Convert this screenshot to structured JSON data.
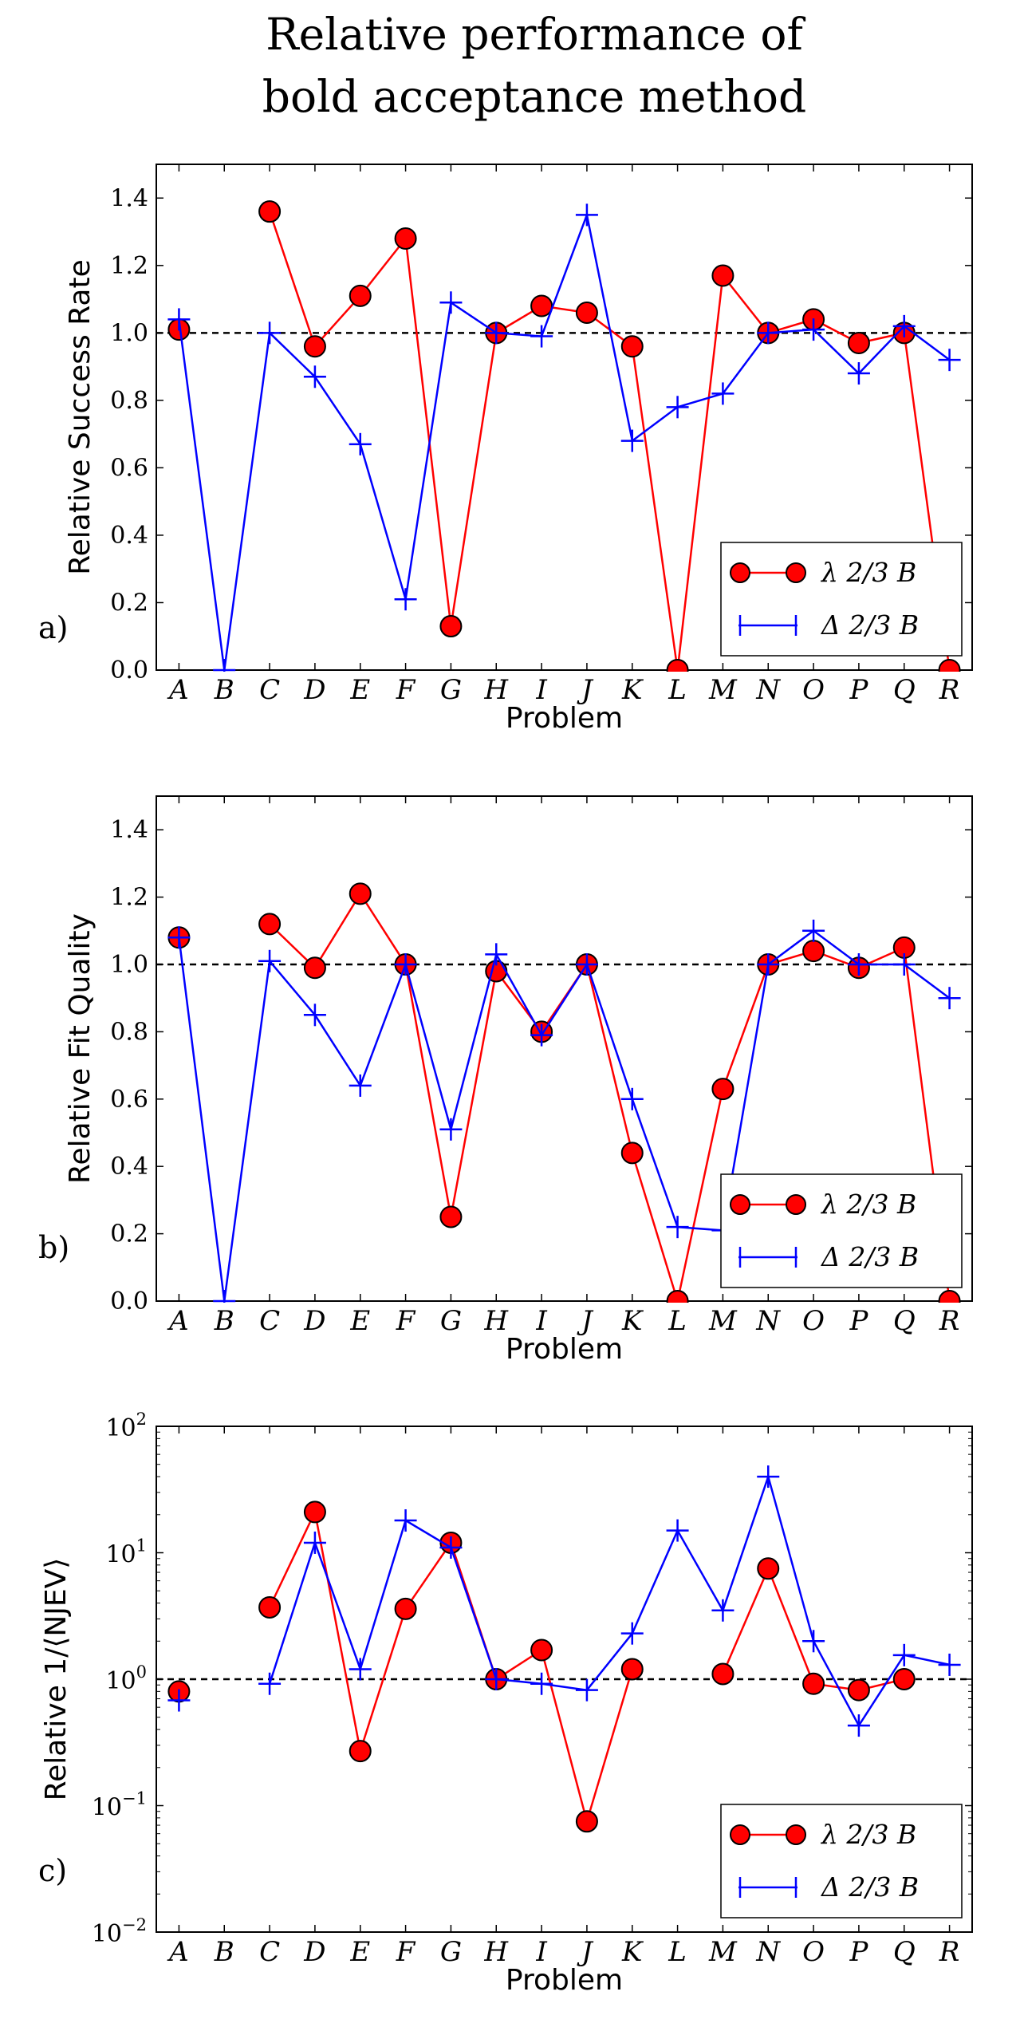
{
  "title_line1": "Relative performance of",
  "title_line2": "bold acceptance method",
  "colors": {
    "series_a": "#ff0000",
    "series_b": "#0000ff",
    "reference": "#000000"
  },
  "chart_data": [
    {
      "type": "line",
      "panel_label": "a)",
      "ylabel": "Relative Success Rate",
      "xlabel": "Problem",
      "scale": "linear",
      "ylim": [
        0,
        1.5
      ],
      "yticks": [
        0.0,
        0.2,
        0.4,
        0.6,
        0.8,
        1.0,
        1.2,
        1.4
      ],
      "ytick_labels": [
        "0.0",
        "0.2",
        "0.4",
        "0.6",
        "0.8",
        "1.0",
        "1.2",
        "1.4"
      ],
      "reference_line": 1.0,
      "legend_position": "lower-right",
      "categories": [
        "A",
        "B",
        "C",
        "D",
        "E",
        "F",
        "G",
        "H",
        "I",
        "J",
        "K",
        "L",
        "M",
        "N",
        "O",
        "P",
        "Q",
        "R"
      ],
      "series": [
        {
          "name": "λ 2/3 B",
          "marker": "circle",
          "values": [
            1.01,
            null,
            1.36,
            0.96,
            1.11,
            1.28,
            0.13,
            1.0,
            1.08,
            1.06,
            0.96,
            0.0,
            1.17,
            1.0,
            1.04,
            0.97,
            1.0,
            0.0
          ]
        },
        {
          "name": "Δ 2/3 B",
          "marker": "plus",
          "values": [
            1.04,
            0.0,
            1.0,
            0.87,
            0.67,
            0.21,
            1.09,
            1.0,
            0.99,
            1.35,
            0.68,
            0.78,
            0.82,
            1.0,
            1.01,
            0.88,
            1.02,
            0.92
          ]
        }
      ]
    },
    {
      "type": "line",
      "panel_label": "b)",
      "ylabel": "Relative Fit Quality",
      "xlabel": "Problem",
      "scale": "linear",
      "ylim": [
        0,
        1.5
      ],
      "yticks": [
        0.0,
        0.2,
        0.4,
        0.6,
        0.8,
        1.0,
        1.2,
        1.4
      ],
      "ytick_labels": [
        "0.0",
        "0.2",
        "0.4",
        "0.6",
        "0.8",
        "1.0",
        "1.2",
        "1.4"
      ],
      "reference_line": 1.0,
      "legend_position": "lower-right",
      "categories": [
        "A",
        "B",
        "C",
        "D",
        "E",
        "F",
        "G",
        "H",
        "I",
        "J",
        "K",
        "L",
        "M",
        "N",
        "O",
        "P",
        "Q",
        "R"
      ],
      "series": [
        {
          "name": "λ 2/3 B",
          "marker": "circle",
          "values": [
            1.08,
            null,
            1.12,
            0.99,
            1.21,
            1.0,
            0.25,
            0.98,
            0.8,
            1.0,
            0.44,
            0.0,
            0.63,
            1.0,
            1.04,
            0.99,
            1.05,
            0.0
          ]
        },
        {
          "name": "Δ 2/3 B",
          "marker": "plus",
          "values": [
            1.08,
            0.0,
            1.01,
            0.85,
            0.64,
            1.0,
            0.51,
            1.03,
            0.79,
            1.0,
            0.6,
            0.22,
            0.21,
            1.0,
            1.1,
            1.0,
            1.0,
            0.9
          ]
        }
      ]
    },
    {
      "type": "line",
      "panel_label": "c)",
      "ylabel": "Relative 1/⟨NJEV⟩",
      "xlabel": "Problem",
      "scale": "log",
      "ylim": [
        0.01,
        100
      ],
      "yticks": [
        0.01,
        0.1,
        1,
        10,
        100
      ],
      "ytick_labels": [
        {
          "base": "10",
          "exp": "−2"
        },
        {
          "base": "10",
          "exp": "−1"
        },
        {
          "base": "10",
          "exp": "0"
        },
        {
          "base": "10",
          "exp": "1"
        },
        {
          "base": "10",
          "exp": "2"
        }
      ],
      "reference_line": 1.0,
      "legend_position": "lower-right",
      "categories": [
        "A",
        "B",
        "C",
        "D",
        "E",
        "F",
        "G",
        "H",
        "I",
        "J",
        "K",
        "L",
        "M",
        "N",
        "O",
        "P",
        "Q",
        "R"
      ],
      "series": [
        {
          "name": "λ 2/3 B",
          "marker": "circle",
          "values": [
            0.8,
            null,
            3.7,
            21,
            0.27,
            3.6,
            12,
            1.0,
            1.7,
            0.075,
            1.2,
            null,
            1.1,
            7.5,
            0.92,
            0.82,
            1.0,
            null
          ]
        },
        {
          "name": "Δ 2/3 B",
          "marker": "plus",
          "values": [
            0.68,
            null,
            0.92,
            12,
            1.2,
            18,
            11,
            1.0,
            0.92,
            0.82,
            2.3,
            15,
            3.5,
            40,
            2.0,
            0.43,
            1.55,
            1.3
          ]
        }
      ]
    }
  ]
}
